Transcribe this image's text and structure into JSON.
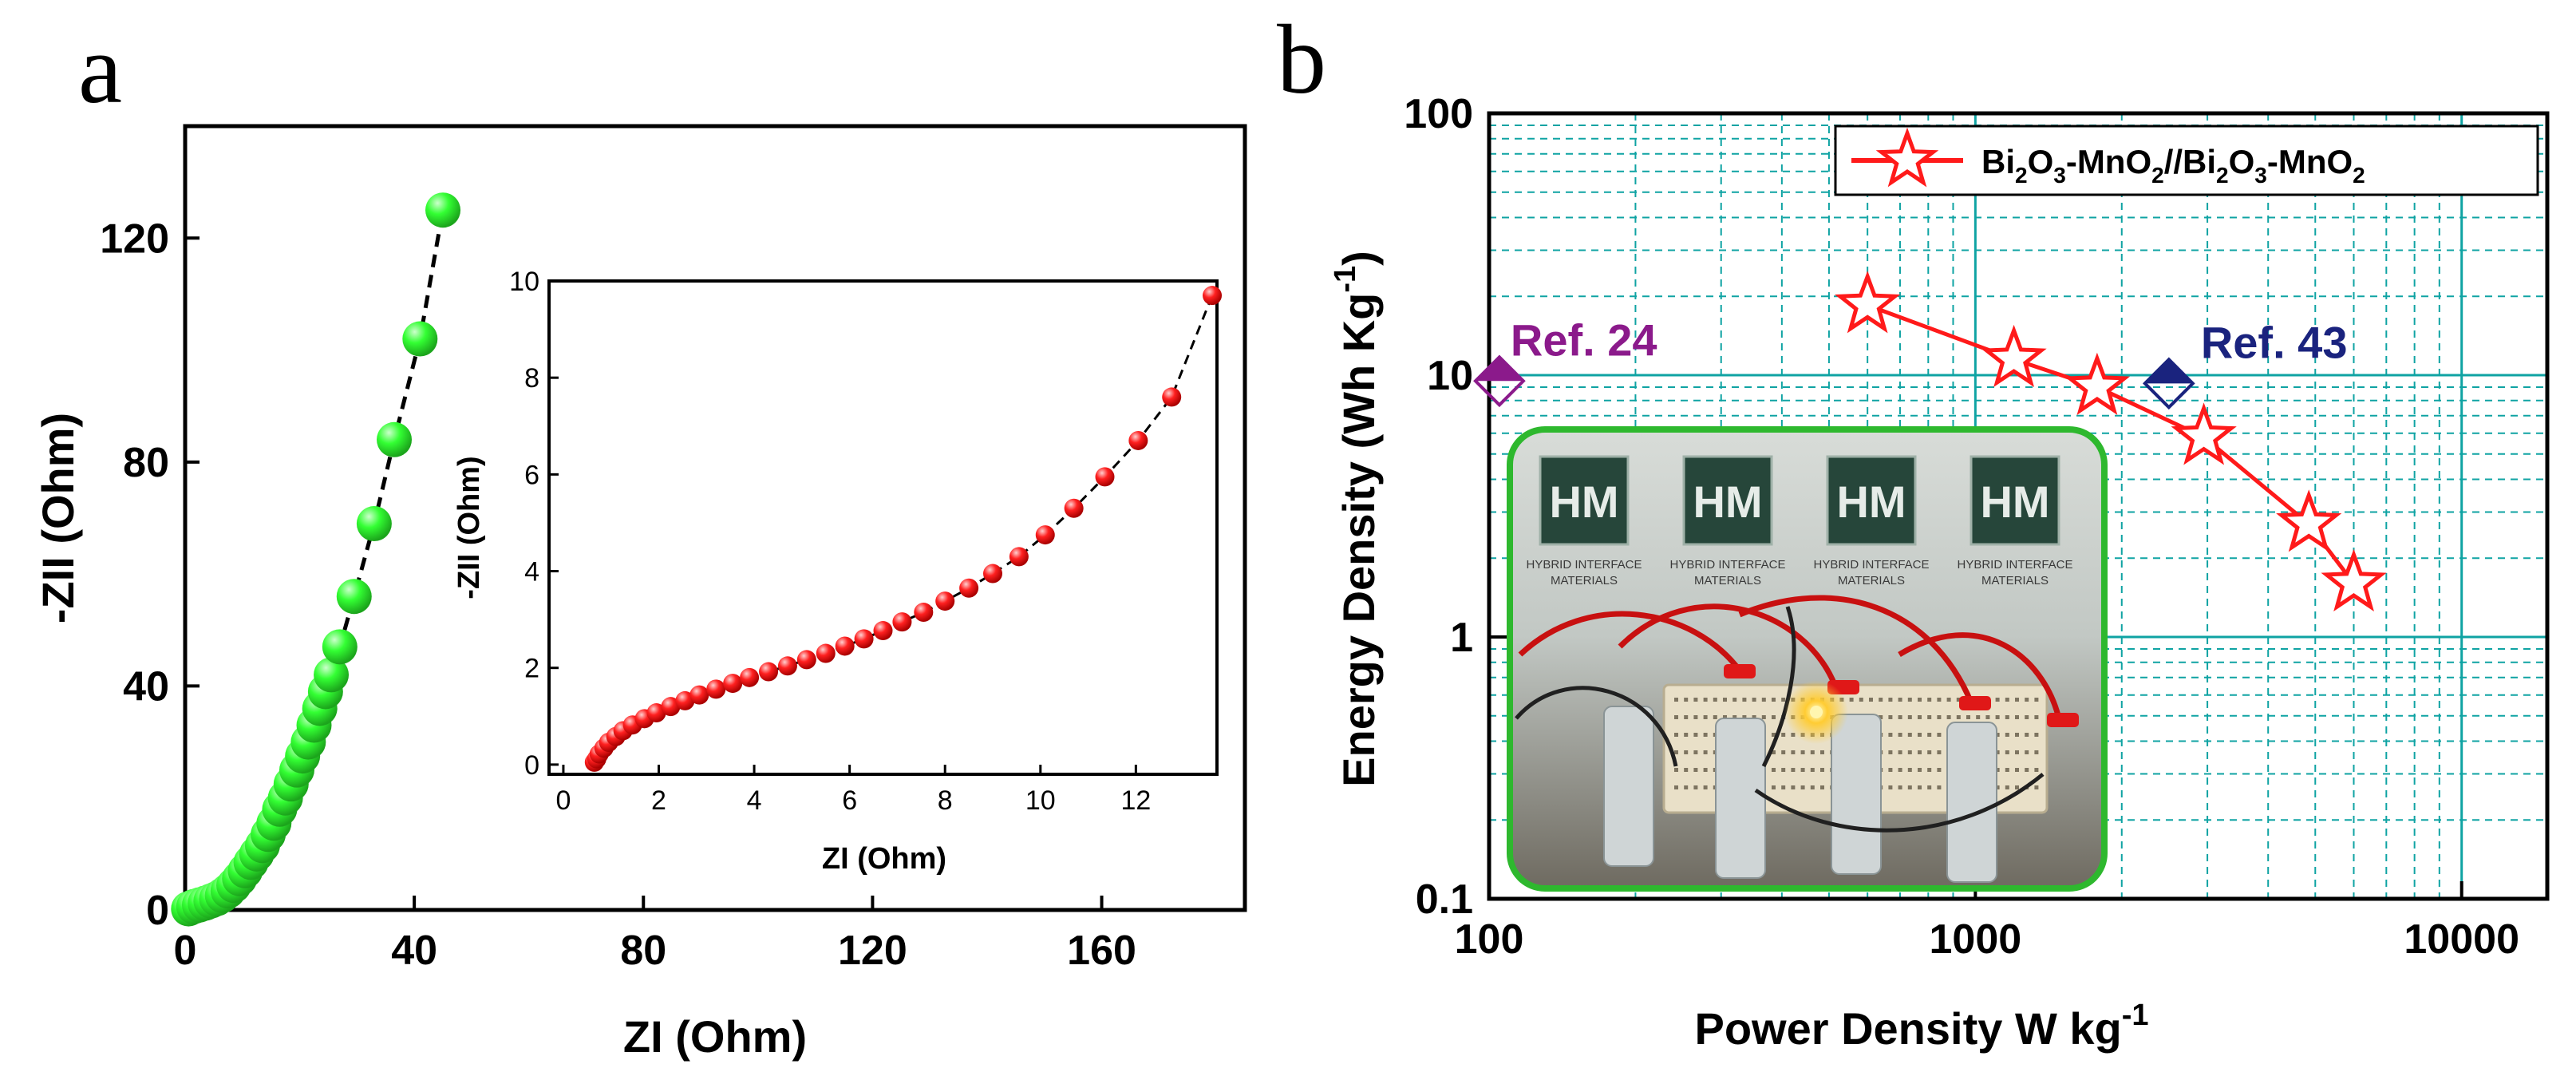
{
  "panels": {
    "a": "a",
    "b": "b"
  },
  "chart_data": [
    {
      "id": "a_main",
      "type": "scatter",
      "title": "",
      "xlabel": "ZI (Ohm)",
      "ylabel": "-ZII (Ohm)",
      "xlim": [
        0,
        185
      ],
      "ylim": [
        0,
        140
      ],
      "xticks": [
        0,
        40,
        80,
        120,
        160
      ],
      "yticks": [
        0,
        40,
        80,
        120
      ],
      "marker_color": "#33ff33",
      "line_color": "#000000",
      "x": [
        0.6,
        1.5,
        2.5,
        3.5,
        4.5,
        5.5,
        6.5,
        7.5,
        8.5,
        9.5,
        10.5,
        11.5,
        12.5,
        13.5,
        14.5,
        15.5,
        16.5,
        17.5,
        18.5,
        19.5,
        20.5,
        21.5,
        22.5,
        23.5,
        24.5,
        25.5,
        27,
        29.5,
        33,
        36.5,
        41,
        45
      ],
      "y": [
        0.2,
        0.6,
        0.9,
        1.2,
        1.6,
        2.0,
        2.6,
        3.4,
        4.4,
        5.6,
        7.0,
        8.5,
        10.0,
        11.5,
        13.5,
        15.5,
        18.0,
        20.0,
        22.5,
        25.0,
        27.5,
        30.0,
        33.0,
        36.0,
        39.0,
        42.0,
        47.0,
        56.0,
        69.0,
        84.0,
        102.0,
        125.0
      ]
    },
    {
      "id": "a_inset",
      "type": "scatter",
      "title": "",
      "xlabel": "ZI (Ohm)",
      "ylabel": "-ZII (Ohm)",
      "xlim": [
        -0.3,
        13.7
      ],
      "ylim": [
        -0.2,
        10
      ],
      "xticks": [
        0,
        2,
        4,
        6,
        8,
        10,
        12
      ],
      "yticks": [
        0,
        2,
        4,
        6,
        8,
        10
      ],
      "marker_color": "#ff1a1a",
      "line_color": "#000000",
      "x": [
        0.65,
        0.7,
        0.75,
        0.85,
        0.95,
        1.1,
        1.25,
        1.45,
        1.7,
        1.95,
        2.25,
        2.55,
        2.85,
        3.2,
        3.55,
        3.9,
        4.3,
        4.7,
        5.1,
        5.5,
        5.9,
        6.3,
        6.7,
        7.1,
        7.55,
        8.0,
        8.5,
        9.0,
        9.55,
        10.1,
        10.7,
        11.35,
        12.05,
        12.75,
        13.6
      ],
      "y": [
        0.05,
        0.12,
        0.22,
        0.34,
        0.46,
        0.58,
        0.7,
        0.82,
        0.95,
        1.07,
        1.2,
        1.32,
        1.44,
        1.56,
        1.68,
        1.8,
        1.92,
        2.04,
        2.17,
        2.3,
        2.45,
        2.6,
        2.77,
        2.95,
        3.15,
        3.38,
        3.65,
        3.95,
        4.3,
        4.75,
        5.3,
        5.95,
        6.7,
        7.6,
        9.7
      ]
    },
    {
      "id": "b_ragone",
      "type": "line",
      "title": "",
      "xlabel": "Power Density W kg",
      "xlabel_superscript": "-1",
      "ylabel": "Energy Density (Wh Kg",
      "ylabel_superscript": "-1",
      "ylabel_suffix": ")",
      "xscale": "log",
      "yscale": "log",
      "xlim": [
        100,
        15000
      ],
      "ylim": [
        0.1,
        100
      ],
      "xticks": [
        100,
        1000,
        10000
      ],
      "xtick_labels": [
        "100",
        "1000",
        "10000"
      ],
      "yticks": [
        0.1,
        1,
        10,
        100
      ],
      "ytick_labels": [
        "0.1",
        "1",
        "10",
        "100"
      ],
      "grid": true,
      "grid_color": "#0fa3a3",
      "legend_position": "top-right",
      "series": [
        {
          "name_parts": [
            "Bi",
            "2",
            "O",
            "3",
            "-MnO",
            "2",
            "//Bi",
            "2",
            "O",
            "3",
            "-MnO",
            "2"
          ],
          "color": "#ff1a1a",
          "marker": "star",
          "x": [
            600,
            1200,
            1780,
            2950,
            4850,
            6000
          ],
          "y": [
            18.5,
            11.5,
            9.0,
            5.8,
            2.7,
            1.6
          ]
        }
      ],
      "annotations": [
        {
          "text": "Ref. 24",
          "x": 105,
          "y": 9.5,
          "color": "#8b1a8b",
          "marker": "half-filled-diamond"
        },
        {
          "text": "Ref. 43",
          "x": 2500,
          "y": 9.3,
          "color": "#1a237e",
          "marker": "half-filled-diamond"
        }
      ]
    }
  ],
  "photo": {
    "description": "inset photograph",
    "logo_text": [
      "HM",
      "HM",
      "HM",
      "HM"
    ],
    "banner_text": [
      "HYBRID INTERFACE",
      "MATERIALS",
      "HYBRID INTERFACE",
      "MATERIALS",
      "HYBRID INTERFACE",
      "MATERIALS",
      "HYBRID INTERFACE",
      "MATERIALS"
    ]
  }
}
